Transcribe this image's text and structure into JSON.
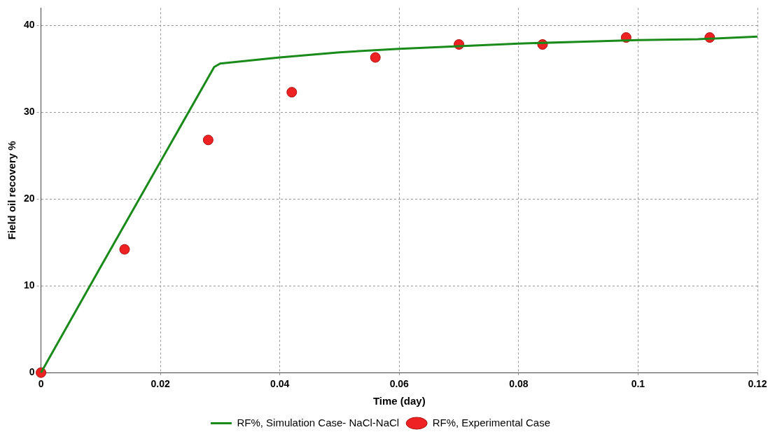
{
  "chart_data": {
    "type": "line",
    "xlabel": "Time (day)",
    "ylabel": "Field oil recovery %",
    "xlim": [
      0,
      0.12
    ],
    "xticks": [
      0,
      0.02,
      0.04,
      0.06,
      0.08,
      0.1,
      0.12
    ],
    "ylim": [
      0,
      42
    ],
    "yticks": [
      0,
      10,
      20,
      30,
      40
    ],
    "grid": true,
    "legend": "bottom",
    "series": [
      {
        "name": "RF%, Simulation Case- NaCl-NaCl",
        "type": "line",
        "color": "#1a8a1a",
        "marker": "none",
        "line_style": "solid",
        "x": [
          0,
          0.01,
          0.02,
          0.029,
          0.03,
          0.04,
          0.05,
          0.06,
          0.07,
          0.08,
          0.09,
          0.1,
          0.11,
          0.12
        ],
        "values": [
          0,
          12.2,
          24.3,
          35.2,
          35.6,
          36.3,
          36.9,
          37.3,
          37.6,
          37.9,
          38.1,
          38.3,
          38.4,
          38.7
        ]
      },
      {
        "name": "RF%, Experimental Case",
        "type": "scatter",
        "color": "#ee2222",
        "marker": "circle",
        "x": [
          0,
          0.014,
          0.028,
          0.042,
          0.056,
          0.07,
          0.084,
          0.098,
          0.112
        ],
        "values": [
          0,
          14.2,
          26.8,
          32.3,
          36.3,
          37.8,
          37.8,
          38.6,
          38.6
        ]
      }
    ]
  }
}
